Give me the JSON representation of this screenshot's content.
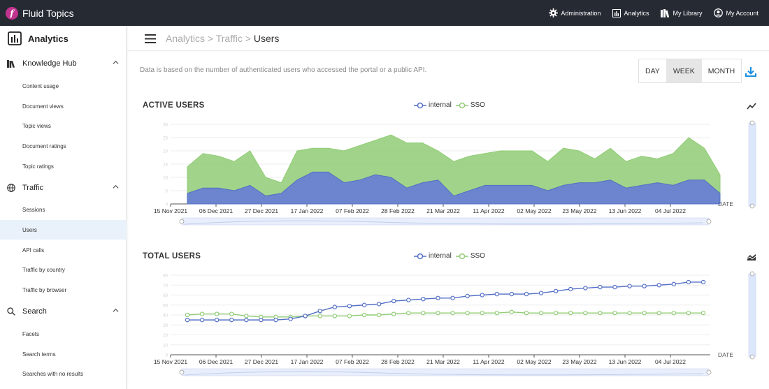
{
  "topbar": {
    "brand": "Fluid Topics",
    "nav": [
      {
        "label": "Administration",
        "icon": "gear-icon"
      },
      {
        "label": "Analytics",
        "icon": "analytics-icon"
      },
      {
        "label": "My Library",
        "icon": "library-icon"
      },
      {
        "label": "My Account",
        "icon": "account-icon"
      }
    ]
  },
  "sidebar": {
    "title": "Analytics",
    "sections": [
      {
        "title": "Knowledge Hub",
        "icon": "books-icon",
        "items": [
          "Content usage",
          "Document views",
          "Topic views",
          "Document ratings",
          "Topic ratings"
        ]
      },
      {
        "title": "Traffic",
        "icon": "globe-icon",
        "items": [
          "Sessions",
          "Users",
          "API calls",
          "Traffic by country",
          "Traffic by browser"
        ]
      },
      {
        "title": "Search",
        "icon": "search-icon",
        "items": [
          "Facets",
          "Search terms",
          "Searches with no results"
        ]
      }
    ],
    "active_item": "Users"
  },
  "header": {
    "crumb1": "Analytics",
    "sep": " > ",
    "crumb2": "Traffic",
    "current": "Users"
  },
  "note": "Data is based on the number of authenticated users who accessed the portal or a public API.",
  "period": {
    "options": [
      "DAY",
      "WEEK",
      "MONTH"
    ],
    "selected": "WEEK"
  },
  "colors": {
    "internal": "#5470c6",
    "sso": "#91cc75"
  },
  "chart_data": [
    {
      "type": "area",
      "title": "ACTIVE USERS",
      "xlabel": "DATE",
      "ylabel": "",
      "ylim": [
        0,
        30
      ],
      "stacked": true,
      "legend": "top-center",
      "grid": true,
      "x_ticks": [
        "15 Nov 2021",
        "06 Dec 2021",
        "27 Dec 2021",
        "17 Jan 2022",
        "07 Feb 2022",
        "28 Feb 2022",
        "21 Mar 2022",
        "11 Apr 2022",
        "02 May 2022",
        "23 May 2022",
        "13 Jun 2022",
        "04 Jul 2022"
      ],
      "y_ticks": [
        0,
        5,
        10,
        15,
        20,
        25,
        30
      ],
      "series": [
        {
          "name": "internal",
          "values": [
            4,
            6,
            6,
            5,
            7,
            3,
            4,
            9,
            12,
            12,
            8,
            9,
            11,
            10,
            6,
            8,
            9,
            3,
            5,
            7,
            7,
            7,
            7,
            5,
            7,
            8,
            8,
            9,
            6,
            7,
            8,
            7,
            9,
            9,
            4
          ]
        },
        {
          "name": "SSO",
          "values": [
            10,
            13,
            12,
            11,
            13,
            7,
            4,
            11,
            9,
            9,
            12,
            13,
            13,
            16,
            17,
            15,
            11,
            13,
            13,
            12,
            13,
            13,
            13,
            11,
            14,
            12,
            9,
            12,
            10,
            11,
            9,
            12,
            16,
            12,
            7
          ]
        }
      ]
    },
    {
      "type": "line",
      "title": "TOTAL USERS",
      "xlabel": "DATE",
      "ylabel": "",
      "ylim": [
        0,
        80
      ],
      "legend": "top-center",
      "grid": true,
      "x_ticks": [
        "15 Nov 2021",
        "06 Dec 2021",
        "27 Dec 2021",
        "17 Jan 2022",
        "07 Feb 2022",
        "28 Feb 2022",
        "21 Mar 2022",
        "11 Apr 2022",
        "02 May 2022",
        "23 May 2022",
        "13 Jun 2022",
        "04 Jul 2022"
      ],
      "y_ticks": [
        0,
        10,
        20,
        30,
        40,
        50,
        60,
        70,
        80
      ],
      "series": [
        {
          "name": "internal",
          "values": [
            35,
            35,
            35,
            35,
            35,
            35,
            35,
            36,
            39,
            44,
            48,
            49,
            50,
            51,
            54,
            55,
            56,
            57,
            57,
            59,
            60,
            61,
            61,
            61,
            62,
            64,
            66,
            67,
            68,
            68,
            69,
            69,
            70,
            71,
            73,
            73
          ]
        },
        {
          "name": "SSO",
          "values": [
            40,
            41,
            41,
            41,
            39,
            38,
            38,
            38,
            39,
            39,
            39,
            39,
            40,
            40,
            41,
            42,
            42,
            42,
            42,
            42,
            42,
            42,
            43,
            42,
            42,
            42,
            42,
            42,
            42,
            42,
            42,
            42,
            42,
            42,
            42,
            42
          ]
        }
      ]
    }
  ]
}
